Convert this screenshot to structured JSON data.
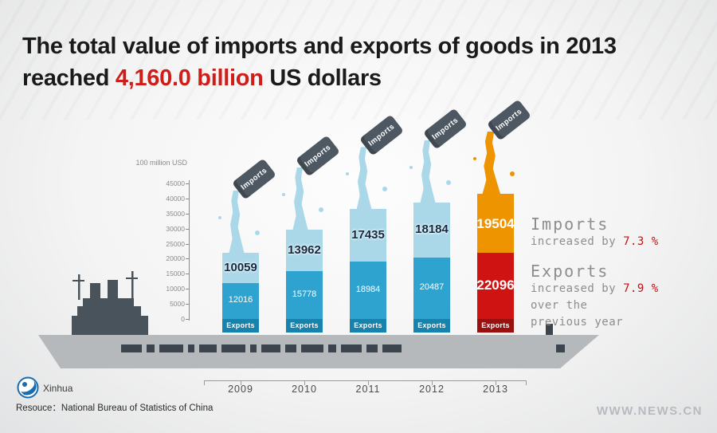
{
  "title": {
    "line1": "The total value of imports and exports of goods in 2013",
    "line2_prefix": "reached ",
    "line2_highlight": "4,160.0 billion",
    "line2_suffix": " US dollars"
  },
  "chart_data": {
    "type": "bar",
    "stacked": true,
    "title": "The total value of imports and exports of goods in 2013 reached 4,160.0 billion US dollars",
    "unit_label": "100 million USD",
    "categories": [
      "2009",
      "2010",
      "2011",
      "2012",
      "2013"
    ],
    "series": [
      {
        "name": "Exports",
        "values": [
          12016,
          15778,
          18984,
          20487,
          22096
        ]
      },
      {
        "name": "Imports",
        "values": [
          10059,
          13962,
          17435,
          18184,
          19504
        ]
      }
    ],
    "ylim": [
      0,
      45000
    ],
    "yticks": [
      45000,
      40000,
      35000,
      30000,
      25000,
      20000,
      15000,
      10000,
      5000,
      0
    ],
    "bar_bottom_label": "Exports",
    "bucket_label": "Imports",
    "grid": false,
    "legend_position": "none",
    "colors": {
      "exports": "#2ea3cf",
      "exports_tag": "#1583ad",
      "imports": "#abd8e8",
      "exports_highlight": "#cf1212",
      "exports_tag_highlight": "#9c0f0f",
      "imports_highlight": "#ee9401",
      "bucket": "#4d5862",
      "highlight_red": "#cf1d1a"
    }
  },
  "annotations": {
    "imports_title": "Imports",
    "imports_prefix": "increased by ",
    "imports_pct": "7.3 %",
    "exports_title": "Exports",
    "exports_prefix": "increased by ",
    "exports_pct": "7.9 %",
    "tail_line1": "over the",
    "tail_line2": "previous year"
  },
  "footer": {
    "agency": "Xinhua",
    "source": "Resouce：National Bureau of Statistics of China",
    "website": "WWW.NEWS.CN"
  }
}
